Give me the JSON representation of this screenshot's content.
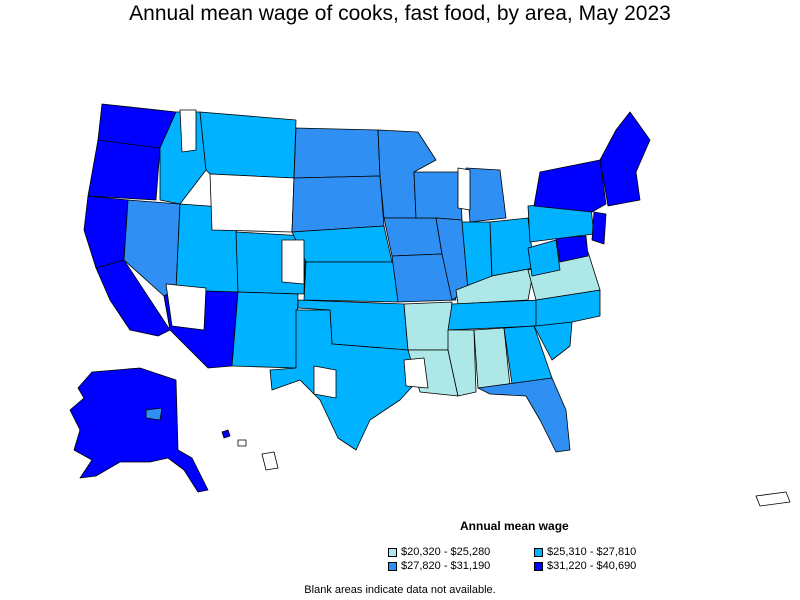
{
  "title": "Annual mean wage of cooks, fast food, by area, May 2023",
  "legend": {
    "title": "Annual mean wage",
    "items": [
      {
        "label": "$20,320 - $25,280",
        "color": "#aee7e7"
      },
      {
        "label": "$25,310 - $27,810",
        "color": "#00b2ff"
      },
      {
        "label": "$27,820 - $31,190",
        "color": "#2f8ff2"
      },
      {
        "label": "$31,220 - $40,690",
        "color": "#0000ff"
      }
    ]
  },
  "footnote": "Blank areas indicate data not available.",
  "colors": {
    "tier1": "#aee7e7",
    "tier2": "#00b2ff",
    "tier3": "#2f8ff2",
    "tier4": "#0000ff",
    "no_data": "#ffffff",
    "outline": "#000000"
  }
}
